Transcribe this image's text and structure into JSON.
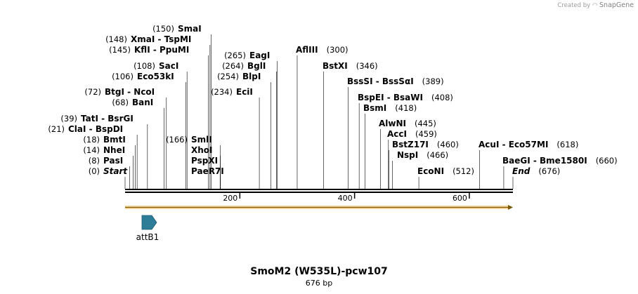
{
  "credit": {
    "prefix": "Created by",
    "brand": "SnapGene"
  },
  "title": "SmoM2 (W535L)-pcw107",
  "size_text": "676 bp",
  "sequence_length": 676,
  "colors": {
    "feature_arrow": "#f5a623",
    "attb_feature": "#2e7d98",
    "line": "#000000"
  },
  "ruler_ticks": [
    200,
    400,
    600
  ],
  "features": [
    {
      "name": "attB1",
      "start": 1,
      "end": 21,
      "type": "feature"
    },
    {
      "name": "",
      "start": 1,
      "end": 676,
      "type": "orf"
    }
  ],
  "sites": [
    {
      "pos": "(0)",
      "names": [
        "Start"
      ],
      "cut": 0,
      "italic": true
    },
    {
      "pos": "(8)",
      "names": [
        "PasI"
      ],
      "cut": 8
    },
    {
      "pos": "(14)",
      "names": [
        "NheI"
      ],
      "cut": 14
    },
    {
      "pos": "(18)",
      "names": [
        "BmtI"
      ],
      "cut": 18
    },
    {
      "pos": "(21)",
      "names": [
        "ClaI",
        "BspDI"
      ],
      "cut": 21
    },
    {
      "pos": "(39)",
      "names": [
        "TatI",
        "BsrGI"
      ],
      "cut": 39
    },
    {
      "pos": "(68)",
      "names": [
        "BanI"
      ],
      "cut": 68
    },
    {
      "pos": "(72)",
      "names": [
        "BtgI",
        "NcoI"
      ],
      "cut": 72
    },
    {
      "pos": "(106)",
      "names": [
        "Eco53kI"
      ],
      "cut": 106
    },
    {
      "pos": "(108)",
      "names": [
        "SacI"
      ],
      "cut": 108
    },
    {
      "pos": "(145)",
      "names": [
        "KflI",
        "PpuMI"
      ],
      "cut": 145
    },
    {
      "pos": "(148)",
      "names": [
        "XmaI",
        "TspMI"
      ],
      "cut": 148
    },
    {
      "pos": "(150)",
      "names": [
        "SmaI"
      ],
      "cut": 150
    },
    {
      "pos": "(166)",
      "names": [
        "SmlI"
      ],
      "cut": 166
    },
    {
      "pos": "",
      "names": [
        "XhoI"
      ],
      "cut": 166
    },
    {
      "pos": "",
      "names": [
        "PspXI"
      ],
      "cut": 166
    },
    {
      "pos": "",
      "names": [
        "PaeR7I"
      ],
      "cut": 166
    },
    {
      "pos": "(234)",
      "names": [
        "EciI"
      ],
      "cut": 234
    },
    {
      "pos": "(254)",
      "names": [
        "BlpI"
      ],
      "cut": 254
    },
    {
      "pos": "(264)",
      "names": [
        "BglI"
      ],
      "cut": 264
    },
    {
      "pos": "(265)",
      "names": [
        "EagI"
      ],
      "cut": 265
    },
    {
      "pos": "(300)",
      "names": [
        "AflIII"
      ],
      "cut": 300
    },
    {
      "pos": "(346)",
      "names": [
        "BstXI"
      ],
      "cut": 346
    },
    {
      "pos": "(389)",
      "names": [
        "BssSI",
        "BssSαI"
      ],
      "cut": 389
    },
    {
      "pos": "(408)",
      "names": [
        "BspEI",
        "BsaWI"
      ],
      "cut": 408
    },
    {
      "pos": "(418)",
      "names": [
        "BsmI"
      ],
      "cut": 418
    },
    {
      "pos": "(445)",
      "names": [
        "AlwNI"
      ],
      "cut": 445
    },
    {
      "pos": "(459)",
      "names": [
        "AccI"
      ],
      "cut": 459
    },
    {
      "pos": "(460)",
      "names": [
        "BstZ17I"
      ],
      "cut": 460
    },
    {
      "pos": "(466)",
      "names": [
        "NspI"
      ],
      "cut": 466
    },
    {
      "pos": "(512)",
      "names": [
        "EcoNI"
      ],
      "cut": 512
    },
    {
      "pos": "(618)",
      "names": [
        "AcuI",
        "Eco57MI"
      ],
      "cut": 618
    },
    {
      "pos": "(660)",
      "names": [
        "BaeGI",
        "Bme1580I"
      ],
      "cut": 660
    },
    {
      "pos": "(676)",
      "names": [
        "End"
      ],
      "cut": 676,
      "italic": true
    }
  ]
}
